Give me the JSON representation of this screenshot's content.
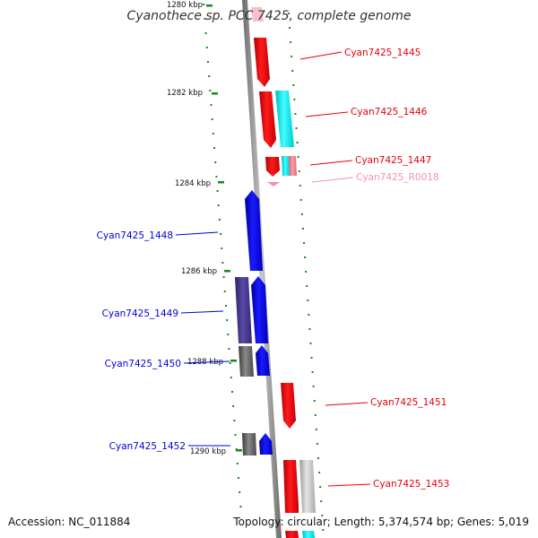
{
  "title": "Cyanothece sp. PCC 7425, complete genome",
  "accession": "Accession: NC_011884",
  "summary": "Topology: circular; Length: 5,374,574 bp; Genes: 5,019",
  "ticks": [
    {
      "label": "1280 kbp"
    },
    {
      "label": "1282 kbp"
    },
    {
      "label": "1284 kbp"
    },
    {
      "label": "1286 kbp"
    },
    {
      "label": "1288 kbp"
    },
    {
      "label": "1290 kbp"
    }
  ],
  "genes": [
    {
      "label": "Cyan7425_1445",
      "color": "#e8000a",
      "strand": "reverse"
    },
    {
      "label": "Cyan7425_1446",
      "color": "#e8000a",
      "strand": "reverse"
    },
    {
      "label": "Cyan7425_1447",
      "color": "#e8000a",
      "strand": "reverse"
    },
    {
      "label": "Cyan7425_R0018",
      "color": "#f291b2",
      "strand": "reverse"
    },
    {
      "label": "Cyan7425_1448",
      "color": "#0000e0",
      "strand": "forward"
    },
    {
      "label": "Cyan7425_1449",
      "color": "#0000e0",
      "strand": "forward"
    },
    {
      "label": "Cyan7425_1450",
      "color": "#0000e0",
      "strand": "forward"
    },
    {
      "label": "Cyan7425_1451",
      "color": "#e8000a",
      "strand": "reverse"
    },
    {
      "label": "Cyan7425_1452",
      "color": "#0000e0",
      "strand": "forward"
    },
    {
      "label": "Cyan7425_1453",
      "color": "#e8000a",
      "strand": "reverse"
    }
  ]
}
